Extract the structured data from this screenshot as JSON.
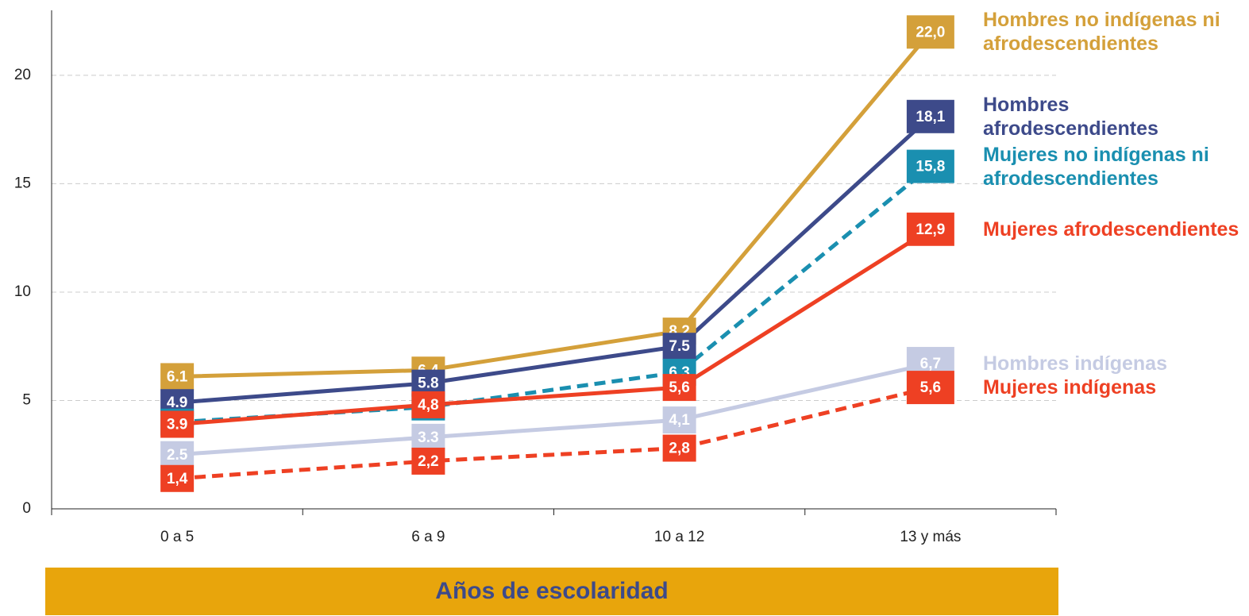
{
  "chart_data": {
    "type": "line",
    "x_label": "Años de escolaridad",
    "categories": [
      "0 a 5",
      "6 a 9",
      "10 a 12",
      "13 y más"
    ],
    "ylim": [
      0,
      23
    ],
    "yticks": [
      0,
      5,
      10,
      15,
      20
    ],
    "grid": true,
    "series": [
      {
        "name": "Hombres no indígenas ni afrodescendientes",
        "color": "#d4a03a",
        "dashed": false,
        "values": [
          6.1,
          6.4,
          8.2,
          22.0
        ],
        "value_labels": [
          "6.1",
          "6.4",
          "8.2",
          "22,0"
        ]
      },
      {
        "name": "Hombres afrodescendientes",
        "color": "#3d4a8a",
        "dashed": false,
        "values": [
          4.9,
          5.8,
          7.5,
          18.1
        ],
        "value_labels": [
          "4.9",
          "5.8",
          "7.5",
          "18,1"
        ]
      },
      {
        "name": "Mujeres no indígenas ni afrodescendientes",
        "color": "#1a8fb0",
        "dashed": true,
        "values": [
          4.0,
          4.7,
          6.3,
          15.8
        ],
        "value_labels": [
          "4.0",
          "4.7",
          "6.3",
          "15,8"
        ]
      },
      {
        "name": "Mujeres afrodescendientes",
        "color": "#ee4023",
        "dashed": false,
        "values": [
          3.9,
          4.8,
          5.6,
          12.9
        ],
        "value_labels": [
          "3.9",
          "4,8",
          "5,6",
          "12,9"
        ]
      },
      {
        "name": "Hombres indígenas",
        "color": "#c5cbe3",
        "dashed": false,
        "values": [
          2.5,
          3.3,
          4.1,
          6.7
        ],
        "value_labels": [
          "2.5",
          "3.3",
          "4,1",
          "6,7"
        ]
      },
      {
        "name": "Mujeres indígenas",
        "color": "#ee4023",
        "dashed": true,
        "values": [
          1.4,
          2.2,
          2.8,
          5.6
        ],
        "value_labels": [
          "1,4",
          "2,2",
          "2,8",
          "5,6"
        ]
      }
    ]
  }
}
